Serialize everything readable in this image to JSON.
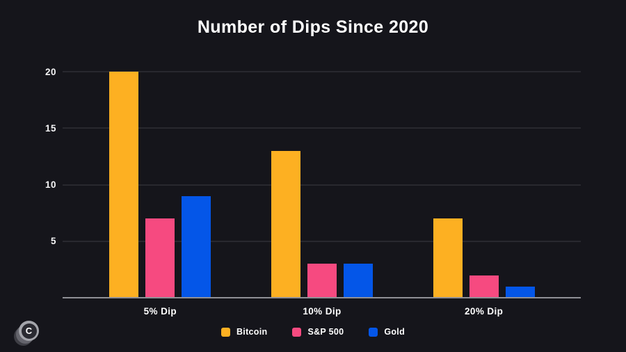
{
  "chart_data": {
    "type": "bar",
    "title": "Number of Dips Since 2020",
    "categories": [
      "5% Dip",
      "10% Dip",
      "20% Dip"
    ],
    "series": [
      {
        "name": "Bitcoin",
        "color": "#FDB022",
        "values": [
          20,
          13,
          7
        ]
      },
      {
        "name": "S&P 500",
        "color": "#F64A80",
        "values": [
          7,
          3,
          2
        ]
      },
      {
        "name": "Gold",
        "color": "#0456E8",
        "values": [
          9,
          3,
          1
        ]
      }
    ],
    "xlabel": "",
    "ylabel": "",
    "ylim": [
      0,
      20
    ],
    "yticks": [
      5,
      10,
      15,
      20
    ],
    "grid": true,
    "legend_position": "bottom"
  },
  "colors": {
    "background": "#15151B",
    "gridline": "#3B3B43",
    "axis_line": "#8F9096",
    "text": "#FFFFFF"
  },
  "logo": {
    "letter": "C"
  }
}
